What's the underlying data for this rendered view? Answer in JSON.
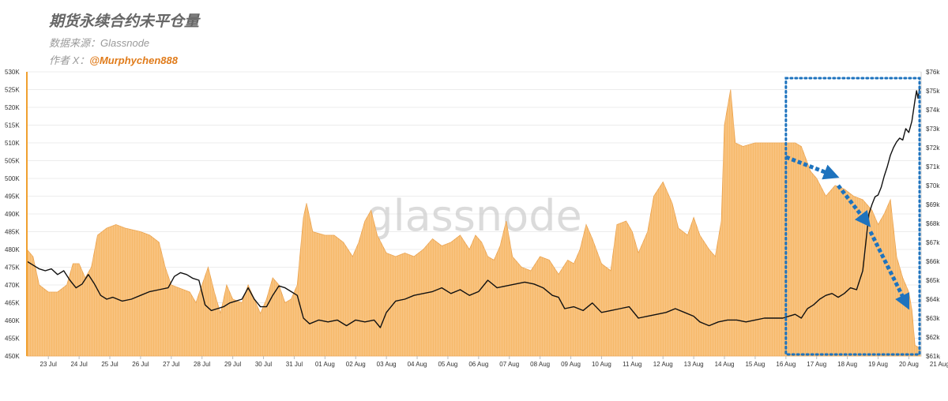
{
  "header": {
    "title": "期货永续合约未平仓量",
    "source": "数据来源：Glassnode",
    "author_prefix": "作者 X：",
    "author_handle": "@Murphychen888"
  },
  "watermark": "glassnode",
  "colors": {
    "oi_fill": "#f7b96a",
    "oi_edge": "#eaa04a",
    "price_line": "#111111",
    "highlight": "#1e73be",
    "left_axis": "#f0a030"
  },
  "chart_data": {
    "type": "bar",
    "x_ticks": [
      "23 Jul",
      "24 Jul",
      "25 Jul",
      "26 Jul",
      "27 Jul",
      "28 Jul",
      "29 Jul",
      "30 Jul",
      "31 Jul",
      "01 Aug",
      "02 Aug",
      "03 Aug",
      "04 Aug",
      "05 Aug",
      "06 Aug",
      "07 Aug",
      "08 Aug",
      "09 Aug",
      "10 Aug",
      "11 Aug",
      "12 Aug",
      "13 Aug",
      "14 Aug",
      "15 Aug",
      "16 Aug",
      "17 Aug",
      "18 Aug",
      "19 Aug",
      "20 Aug",
      "21 Aug"
    ],
    "y_left": {
      "ticks": [
        "450K",
        "455K",
        "460K",
        "465K",
        "470K",
        "475K",
        "480K",
        "485K",
        "490K",
        "495K",
        "500K",
        "505K",
        "510K",
        "515K",
        "520K",
        "525K",
        "530K"
      ],
      "range": [
        450000,
        530000
      ]
    },
    "y_right": {
      "ticks": [
        "$61k",
        "$62k",
        "$63k",
        "$64k",
        "$65k",
        "$66k",
        "$67k",
        "$68k",
        "$69k",
        "$70k",
        "$71k",
        "$72k",
        "$73k",
        "$74k",
        "$75k",
        "$76k"
      ],
      "range": [
        61000,
        76000
      ]
    },
    "x_domain": [
      22.3,
      51.4
    ],
    "series": [
      {
        "kind": "area",
        "points": [
          [
            22.3,
            480
          ],
          [
            22.5,
            478
          ],
          [
            22.7,
            470
          ],
          [
            23.0,
            468
          ],
          [
            23.3,
            468
          ],
          [
            23.6,
            470
          ],
          [
            23.8,
            476
          ],
          [
            24.0,
            476
          ],
          [
            24.2,
            472
          ],
          [
            24.4,
            475
          ],
          [
            24.6,
            484
          ],
          [
            24.9,
            486
          ],
          [
            25.2,
            487
          ],
          [
            25.5,
            486
          ],
          [
            26.0,
            485
          ],
          [
            26.3,
            484
          ],
          [
            26.6,
            482
          ],
          [
            26.8,
            475
          ],
          [
            27.0,
            470
          ],
          [
            27.3,
            469
          ],
          [
            27.6,
            468
          ],
          [
            27.8,
            465
          ],
          [
            28.0,
            470
          ],
          [
            28.2,
            475
          ],
          [
            28.4,
            468
          ],
          [
            28.6,
            462
          ],
          [
            28.8,
            470
          ],
          [
            29.0,
            466
          ],
          [
            29.3,
            465
          ],
          [
            29.5,
            470
          ],
          [
            29.7,
            466
          ],
          [
            29.9,
            462
          ],
          [
            30.1,
            466
          ],
          [
            30.3,
            472
          ],
          [
            30.5,
            470
          ],
          [
            30.7,
            465
          ],
          [
            30.9,
            466
          ],
          [
            31.1,
            470
          ],
          [
            31.3,
            489
          ],
          [
            31.4,
            493
          ],
          [
            31.6,
            485
          ],
          [
            32.0,
            484
          ],
          [
            32.3,
            484
          ],
          [
            32.6,
            482
          ],
          [
            32.9,
            478
          ],
          [
            33.1,
            482
          ],
          [
            33.3,
            488
          ],
          [
            33.5,
            491
          ],
          [
            33.7,
            484
          ],
          [
            34.0,
            479
          ],
          [
            34.3,
            478
          ],
          [
            34.6,
            479
          ],
          [
            34.9,
            478
          ],
          [
            35.2,
            480
          ],
          [
            35.5,
            483
          ],
          [
            35.8,
            481
          ],
          [
            36.1,
            482
          ],
          [
            36.4,
            484
          ],
          [
            36.7,
            480
          ],
          [
            36.9,
            484
          ],
          [
            37.1,
            482
          ],
          [
            37.3,
            478
          ],
          [
            37.5,
            477
          ],
          [
            37.7,
            481
          ],
          [
            37.9,
            488
          ],
          [
            38.1,
            478
          ],
          [
            38.4,
            475
          ],
          [
            38.7,
            474
          ],
          [
            39.0,
            478
          ],
          [
            39.3,
            477
          ],
          [
            39.6,
            473
          ],
          [
            39.9,
            477
          ],
          [
            40.1,
            476
          ],
          [
            40.3,
            480
          ],
          [
            40.5,
            487
          ],
          [
            40.7,
            483
          ],
          [
            41.0,
            476
          ],
          [
            41.3,
            474
          ],
          [
            41.5,
            487
          ],
          [
            41.8,
            488
          ],
          [
            42.0,
            485
          ],
          [
            42.2,
            479
          ],
          [
            42.5,
            485
          ],
          [
            42.7,
            495
          ],
          [
            43.0,
            499
          ],
          [
            43.3,
            493
          ],
          [
            43.5,
            486
          ],
          [
            43.8,
            484
          ],
          [
            44.0,
            489
          ],
          [
            44.2,
            484
          ],
          [
            44.5,
            480
          ],
          [
            44.7,
            478
          ],
          [
            44.9,
            488
          ],
          [
            45.0,
            515
          ],
          [
            45.1,
            520
          ],
          [
            45.2,
            525
          ],
          [
            45.35,
            510
          ],
          [
            45.6,
            509
          ],
          [
            46.0,
            510
          ],
          [
            46.5,
            510
          ],
          [
            47.0,
            510
          ],
          [
            47.3,
            510
          ],
          [
            47.5,
            509
          ],
          [
            47.8,
            502
          ],
          [
            48.0,
            500
          ],
          [
            48.3,
            495
          ],
          [
            48.6,
            498
          ],
          [
            48.9,
            497
          ],
          [
            49.2,
            495
          ],
          [
            49.5,
            494
          ],
          [
            49.8,
            491
          ],
          [
            50.0,
            487
          ],
          [
            50.2,
            490
          ],
          [
            50.4,
            494
          ],
          [
            50.5,
            486
          ],
          [
            50.6,
            478
          ],
          [
            50.8,
            472
          ],
          [
            51.0,
            468
          ],
          [
            51.1,
            463
          ],
          [
            51.2,
            453
          ],
          [
            51.4,
            452
          ]
        ]
      },
      {
        "kind": "line",
        "points": [
          [
            22.3,
            66.0
          ],
          [
            22.5,
            65.8
          ],
          [
            22.7,
            65.6
          ],
          [
            22.9,
            65.5
          ],
          [
            23.1,
            65.6
          ],
          [
            23.3,
            65.3
          ],
          [
            23.5,
            65.5
          ],
          [
            23.7,
            65.0
          ],
          [
            23.9,
            64.6
          ],
          [
            24.1,
            64.8
          ],
          [
            24.3,
            65.3
          ],
          [
            24.5,
            64.8
          ],
          [
            24.7,
            64.2
          ],
          [
            24.9,
            64.0
          ],
          [
            25.1,
            64.1
          ],
          [
            25.4,
            63.9
          ],
          [
            25.7,
            64.0
          ],
          [
            26.0,
            64.2
          ],
          [
            26.3,
            64.4
          ],
          [
            26.6,
            64.5
          ],
          [
            26.9,
            64.6
          ],
          [
            27.1,
            65.2
          ],
          [
            27.3,
            65.4
          ],
          [
            27.5,
            65.3
          ],
          [
            27.7,
            65.1
          ],
          [
            27.9,
            65.0
          ],
          [
            28.1,
            63.7
          ],
          [
            28.3,
            63.4
          ],
          [
            28.5,
            63.5
          ],
          [
            28.7,
            63.6
          ],
          [
            28.9,
            63.8
          ],
          [
            29.1,
            63.9
          ],
          [
            29.3,
            64.0
          ],
          [
            29.5,
            64.6
          ],
          [
            29.7,
            64.0
          ],
          [
            29.9,
            63.6
          ],
          [
            30.1,
            63.6
          ],
          [
            30.3,
            64.2
          ],
          [
            30.5,
            64.7
          ],
          [
            30.7,
            64.6
          ],
          [
            30.9,
            64.4
          ],
          [
            31.1,
            64.2
          ],
          [
            31.3,
            63.0
          ],
          [
            31.5,
            62.7
          ],
          [
            31.8,
            62.9
          ],
          [
            32.1,
            62.8
          ],
          [
            32.4,
            62.9
          ],
          [
            32.7,
            62.6
          ],
          [
            33.0,
            62.9
          ],
          [
            33.3,
            62.8
          ],
          [
            33.6,
            62.9
          ],
          [
            33.8,
            62.5
          ],
          [
            34.0,
            63.3
          ],
          [
            34.3,
            63.9
          ],
          [
            34.6,
            64.0
          ],
          [
            34.9,
            64.2
          ],
          [
            35.2,
            64.3
          ],
          [
            35.5,
            64.4
          ],
          [
            35.8,
            64.6
          ],
          [
            36.1,
            64.3
          ],
          [
            36.4,
            64.5
          ],
          [
            36.7,
            64.2
          ],
          [
            37.0,
            64.4
          ],
          [
            37.3,
            65.0
          ],
          [
            37.6,
            64.6
          ],
          [
            37.9,
            64.7
          ],
          [
            38.2,
            64.8
          ],
          [
            38.5,
            64.9
          ],
          [
            38.8,
            64.8
          ],
          [
            39.1,
            64.6
          ],
          [
            39.4,
            64.2
          ],
          [
            39.6,
            64.1
          ],
          [
            39.8,
            63.5
          ],
          [
            40.1,
            63.6
          ],
          [
            40.4,
            63.4
          ],
          [
            40.7,
            63.8
          ],
          [
            41.0,
            63.3
          ],
          [
            41.3,
            63.4
          ],
          [
            41.6,
            63.5
          ],
          [
            41.9,
            63.6
          ],
          [
            42.2,
            63.0
          ],
          [
            42.5,
            63.1
          ],
          [
            42.8,
            63.2
          ],
          [
            43.1,
            63.3
          ],
          [
            43.4,
            63.5
          ],
          [
            43.7,
            63.3
          ],
          [
            44.0,
            63.1
          ],
          [
            44.2,
            62.8
          ],
          [
            44.5,
            62.6
          ],
          [
            44.8,
            62.8
          ],
          [
            45.1,
            62.9
          ],
          [
            45.4,
            62.9
          ],
          [
            45.7,
            62.8
          ],
          [
            46.0,
            62.9
          ],
          [
            46.3,
            63.0
          ],
          [
            46.6,
            63.0
          ],
          [
            46.9,
            63.0
          ],
          [
            47.1,
            63.1
          ],
          [
            47.3,
            63.2
          ],
          [
            47.5,
            63.0
          ],
          [
            47.7,
            63.5
          ],
          [
            47.9,
            63.7
          ],
          [
            48.1,
            64.0
          ],
          [
            48.3,
            64.2
          ],
          [
            48.5,
            64.3
          ],
          [
            48.7,
            64.1
          ],
          [
            48.9,
            64.3
          ],
          [
            49.1,
            64.6
          ],
          [
            49.3,
            64.5
          ],
          [
            49.5,
            65.5
          ],
          [
            49.6,
            67.0
          ],
          [
            49.7,
            68.5
          ],
          [
            49.8,
            69.0
          ],
          [
            49.9,
            69.4
          ],
          [
            50.0,
            69.5
          ],
          [
            50.1,
            69.9
          ],
          [
            50.2,
            70.5
          ],
          [
            50.3,
            71.0
          ],
          [
            50.4,
            71.6
          ],
          [
            50.5,
            72.0
          ],
          [
            50.6,
            72.3
          ],
          [
            50.7,
            72.5
          ],
          [
            50.8,
            72.4
          ],
          [
            50.9,
            73.0
          ],
          [
            51.0,
            72.8
          ],
          [
            51.1,
            73.4
          ],
          [
            51.2,
            74.5
          ],
          [
            51.25,
            75.0
          ],
          [
            51.3,
            74.6
          ],
          [
            51.35,
            75.2
          ],
          [
            51.4,
            75.1
          ]
        ]
      }
    ],
    "highlight_box": {
      "x_from": 47.0,
      "x_to": 51.4,
      "y_from": 450,
      "y_to": 530
    },
    "arrows": [
      {
        "from": [
          47.0,
          506
        ],
        "to": [
          48.5,
          501
        ]
      },
      {
        "from": [
          48.7,
          498
        ],
        "to": [
          49.6,
          488
        ]
      },
      {
        "from": [
          49.75,
          485
        ],
        "to": [
          50.9,
          465
        ]
      }
    ]
  }
}
